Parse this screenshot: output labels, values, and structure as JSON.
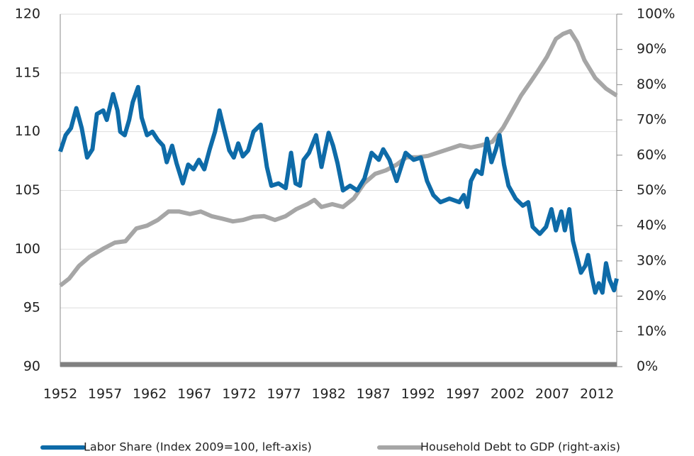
{
  "chart_data": {
    "type": "line",
    "xlim": [
      1952,
      2014.2
    ],
    "xticks": [
      1952,
      1957,
      1962,
      1967,
      1972,
      1977,
      1982,
      1987,
      1992,
      1997,
      2002,
      2007,
      2012
    ],
    "ylim": [
      90,
      120
    ],
    "yticks": [
      90,
      95,
      100,
      105,
      110,
      115,
      120
    ],
    "y2lim": [
      0,
      100
    ],
    "y2ticks": [
      {
        "value": 0,
        "label": "0%"
      },
      {
        "value": 10,
        "label": "10%"
      },
      {
        "value": 20,
        "label": "20%"
      },
      {
        "value": 30,
        "label": "30%"
      },
      {
        "value": 40,
        "label": "40%"
      },
      {
        "value": 50,
        "label": "50%"
      },
      {
        "value": 60,
        "label": "60%"
      },
      {
        "value": 70,
        "label": "70%"
      },
      {
        "value": 80,
        "label": "80%"
      },
      {
        "value": 90,
        "label": "90%"
      },
      {
        "value": 100,
        "label": "100%"
      }
    ],
    "grid": true,
    "legend": "bottom",
    "series": [
      {
        "name": "Labor Share (Index 2009=100, left-axis)",
        "color": "#0e6ba8",
        "axis": "y",
        "x": [
          1952,
          1952.6,
          1953.2,
          1953.8,
          1954.4,
          1955,
          1955.6,
          1956.1,
          1956.8,
          1957.2,
          1957.9,
          1958.4,
          1958.7,
          1959.2,
          1959.7,
          1960.1,
          1960.7,
          1961.1,
          1961.7,
          1962.3,
          1962.9,
          1963.5,
          1963.9,
          1964.5,
          1965,
          1965.7,
          1966.3,
          1966.9,
          1967.5,
          1968.1,
          1968.7,
          1969.3,
          1969.8,
          1970.3,
          1970.9,
          1971.4,
          1971.9,
          1972.4,
          1973,
          1973.6,
          1974,
          1974.4,
          1975.1,
          1975.6,
          1976.4,
          1977.2,
          1977.8,
          1978.3,
          1978.8,
          1979.2,
          1979.8,
          1980.6,
          1981.2,
          1982,
          1982.5,
          1983,
          1983.6,
          1984.4,
          1985.2,
          1986,
          1986.8,
          1987.6,
          1988.1,
          1988.8,
          1989.6,
          1990.6,
          1991.5,
          1992.3,
          1993,
          1993.7,
          1994.5,
          1995.5,
          1996.6,
          1997.1,
          1997.5,
          1997.9,
          1998.5,
          1999.1,
          1999.7,
          2000.2,
          2000.7,
          2001.1,
          2001.6,
          2002.1,
          2002.9,
          2003.7,
          2004.3,
          2004.8,
          2005.6,
          2006.3,
          2006.9,
          2007.4,
          2008,
          2008.4,
          2008.9,
          2009.3,
          2009.8,
          2010.2,
          2010.7,
          2011,
          2011.4,
          2011.8,
          2012.2,
          2012.6,
          2013,
          2013.4,
          2013.9,
          2014.2
        ],
        "values": [
          108.3,
          109.7,
          110.3,
          112,
          110.3,
          107.8,
          108.5,
          111.5,
          111.8,
          111,
          113.2,
          111.8,
          110,
          109.7,
          111,
          112.5,
          113.8,
          111.2,
          109.7,
          110,
          109.3,
          108.8,
          107.4,
          108.8,
          107.3,
          105.6,
          107.2,
          106.8,
          107.6,
          106.8,
          108.5,
          110,
          111.8,
          110.2,
          108.4,
          107.8,
          109,
          107.9,
          108.4,
          110,
          110.3,
          110.6,
          107,
          105.4,
          105.6,
          105.2,
          108.2,
          105.6,
          105.4,
          107.6,
          108.2,
          109.7,
          107,
          109.9,
          108.8,
          107.3,
          105,
          105.4,
          105,
          106,
          108.2,
          107.6,
          108.5,
          107.6,
          105.8,
          108.2,
          107.6,
          107.8,
          105.8,
          104.6,
          104,
          104.3,
          104,
          104.6,
          103.6,
          105.8,
          106.7,
          106.4,
          109.4,
          107.4,
          108.5,
          109.7,
          107.2,
          105.4,
          104.3,
          103.7,
          104,
          101.9,
          101.3,
          101.9,
          103.4,
          101.6,
          103.2,
          101.6,
          103.4,
          100.7,
          99.2,
          98,
          98.6,
          99.5,
          97.7,
          96.3,
          97.1,
          96.3,
          98.8,
          97.4,
          96.5,
          97.5
        ]
      },
      {
        "name": "Household Debt to GDP (right-axis)",
        "color": "#a6a6a6",
        "axis": "y2",
        "x": [
          1952,
          1953,
          1954.1,
          1955.3,
          1956.9,
          1958.1,
          1959.3,
          1960.5,
          1961.7,
          1962.9,
          1964.1,
          1965.3,
          1966.5,
          1967.7,
          1968.9,
          1970.1,
          1971.3,
          1972.4,
          1973.6,
          1974.8,
          1976,
          1977.2,
          1978.4,
          1979.6,
          1980.4,
          1981.2,
          1982.4,
          1983.6,
          1984.8,
          1986,
          1987.2,
          1988.4,
          1989.6,
          1990.7,
          1991.9,
          1993.1,
          1994.3,
          1995.5,
          1996.7,
          1997.9,
          1999.1,
          2000.3,
          2001.5,
          2002.3,
          2003.5,
          2004.6,
          2005.4,
          2006.4,
          2007.4,
          2008.2,
          2009,
          2009.8,
          2010.6,
          2011.8,
          2013,
          2014.2
        ],
        "values": [
          23,
          25,
          28.6,
          31.2,
          33.6,
          35.2,
          35.6,
          39.2,
          40,
          41.6,
          44,
          44,
          43.3,
          44,
          42.7,
          42,
          41.2,
          41.6,
          42.5,
          42.7,
          41.6,
          42.7,
          44.7,
          46.1,
          47.3,
          45.3,
          46.1,
          45.3,
          47.7,
          52.1,
          54.7,
          55.7,
          57.3,
          59.4,
          59.4,
          59.8,
          60.8,
          61.8,
          62.8,
          62.2,
          62.8,
          63.8,
          67.8,
          71.4,
          76.9,
          80.9,
          83.9,
          87.9,
          93,
          94.4,
          95.2,
          92,
          86.9,
          81.9,
          78.9,
          76.9
        ]
      }
    ]
  }
}
